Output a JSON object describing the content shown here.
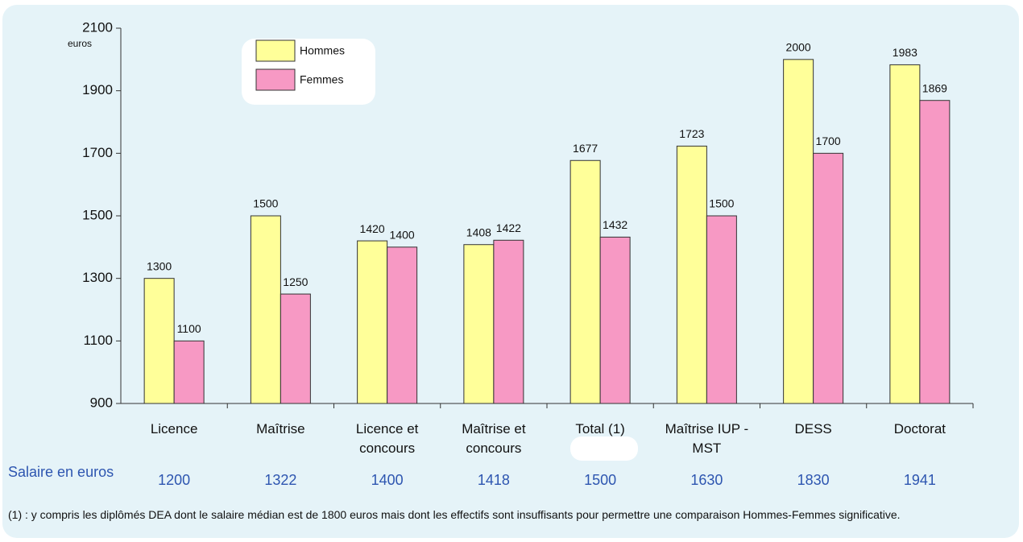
{
  "chart_data": {
    "type": "bar",
    "y_unit": "euros",
    "categories": [
      "Licence",
      "Maîtrise",
      "Licence et concours",
      "Maîtrise et concours",
      "Total (1)",
      "Maîtrise IUP - MST",
      "DESS",
      "Doctorat"
    ],
    "series": [
      {
        "name": "Hommes",
        "color": "#ffff99",
        "values": [
          1300,
          1500,
          1420,
          1408,
          1677,
          1723,
          2000,
          1983
        ]
      },
      {
        "name": "Femmes",
        "color": "#f799c4",
        "values": [
          1100,
          1250,
          1400,
          1422,
          1432,
          1500,
          1700,
          1869
        ]
      }
    ],
    "ylim": [
      900,
      2100
    ],
    "yticks": [
      900,
      1100,
      1300,
      1500,
      1700,
      1900,
      2100
    ],
    "salary_label": "Salaire en euros",
    "salaries": [
      1200,
      1322,
      1400,
      1418,
      1500,
      1630,
      1830,
      1941
    ],
    "footnote": "(1) : y compris les diplômés DEA dont le salaire médian est de 1800 euros mais dont les effectifs sont insuffisants pour permettre une comparaison Hommes-Femmes significative."
  }
}
